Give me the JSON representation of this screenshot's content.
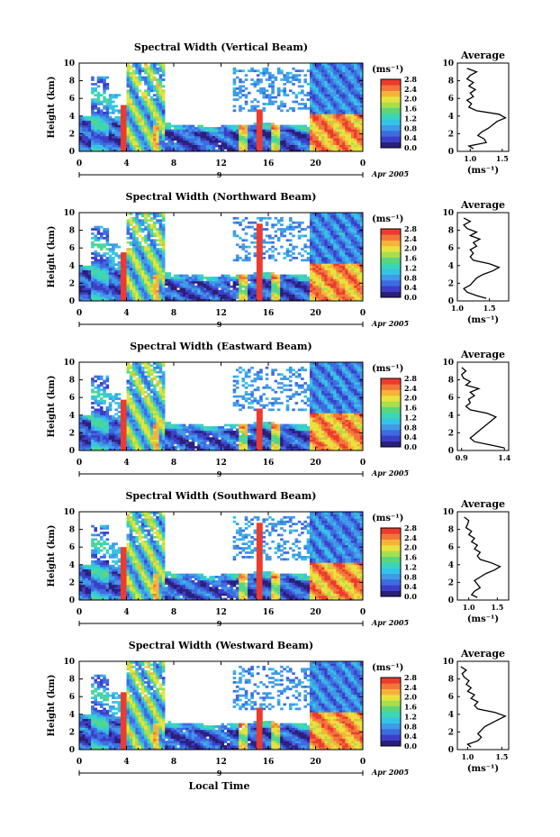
{
  "figure": {
    "xlabel": "Local Time",
    "date_label": "Apr 2005",
    "day_label": "9"
  },
  "colors": {
    "colormap": [
      "#2a1f7a",
      "#3b3fc8",
      "#3e6be0",
      "#3f9ae8",
      "#34c4e6",
      "#3ad6b8",
      "#5bd67a",
      "#a6df4e",
      "#e8e23e",
      "#f7b23a",
      "#f2763a",
      "#ec3b2e"
    ]
  },
  "chart_data": [
    {
      "type": "heatmap",
      "title": "Spectral Width (Vertical Beam)",
      "ylabel": "Height (km)",
      "x_ticks": [
        "0",
        "4",
        "8",
        "12",
        "16",
        "20",
        "0"
      ],
      "xlim": [
        0,
        24
      ],
      "ylim": [
        0,
        10
      ],
      "y_ticks": [
        "0",
        "2",
        "4",
        "6",
        "8",
        "10"
      ],
      "colorbar": {
        "unit": "(ms⁻¹)",
        "ticks": [
          "0.0",
          "0.4",
          "0.8",
          "1.2",
          "1.6",
          "2.0",
          "2.4",
          "2.8"
        ],
        "range": [
          0,
          2.8
        ]
      },
      "profile": {
        "title": "Average",
        "xlabel": "(ms⁻¹)",
        "x_ticks": [
          "1.0",
          "1.5"
        ],
        "xlim": [
          0.8,
          1.6
        ],
        "heights": [
          0.3,
          0.6,
          1.0,
          1.4,
          1.8,
          2.2,
          2.6,
          3.0,
          3.4,
          3.8,
          4.2,
          4.6,
          5.0,
          5.4,
          5.8,
          6.2,
          6.6,
          7.0,
          7.4,
          7.8,
          8.2,
          8.6,
          9.0,
          9.4
        ],
        "values": [
          1.05,
          0.98,
          1.25,
          1.22,
          1.12,
          1.18,
          1.28,
          1.35,
          1.42,
          1.55,
          1.45,
          1.1,
          0.98,
          1.02,
          0.95,
          1.05,
          1.0,
          1.08,
          0.98,
          1.05,
          0.95,
          1.0,
          1.1,
          0.95
        ]
      }
    },
    {
      "type": "heatmap",
      "title": "Spectral Width (Northward Beam)",
      "ylabel": "Height (km)",
      "x_ticks": [
        "0",
        "4",
        "8",
        "12",
        "16",
        "20",
        "0"
      ],
      "xlim": [
        0,
        24
      ],
      "ylim": [
        0,
        10
      ],
      "y_ticks": [
        "0",
        "2",
        "4",
        "6",
        "8",
        "10"
      ],
      "colorbar": {
        "unit": "(ms⁻¹)",
        "ticks": [
          "0.0",
          "0.4",
          "0.8",
          "1.2",
          "1.6",
          "2.0",
          "2.4",
          "2.8"
        ],
        "range": [
          0,
          2.8
        ]
      },
      "profile": {
        "title": "Average",
        "xlabel": "(ms⁻¹)",
        "x_ticks": [
          "1.0",
          "1.5"
        ],
        "xlim": [
          1.0,
          1.8
        ],
        "heights": [
          0.3,
          0.6,
          1.0,
          1.4,
          1.8,
          2.2,
          2.6,
          3.0,
          3.4,
          3.8,
          4.2,
          4.6,
          5.0,
          5.4,
          5.8,
          6.2,
          6.6,
          7.0,
          7.4,
          7.8,
          8.2,
          8.6,
          9.0,
          9.4
        ],
        "values": [
          1.45,
          1.3,
          1.15,
          1.1,
          1.2,
          1.25,
          1.3,
          1.4,
          1.55,
          1.65,
          1.5,
          1.25,
          1.2,
          1.25,
          1.2,
          1.3,
          1.25,
          1.35,
          1.2,
          1.3,
          1.15,
          1.1,
          1.2,
          1.1
        ]
      }
    },
    {
      "type": "heatmap",
      "title": "Spectral Width (Eastward Beam)",
      "ylabel": "Height (km)",
      "x_ticks": [
        "0",
        "4",
        "8",
        "12",
        "16",
        "20",
        "0"
      ],
      "xlim": [
        0,
        24
      ],
      "ylim": [
        0,
        10
      ],
      "y_ticks": [
        "0",
        "2",
        "4",
        "6",
        "8",
        "10"
      ],
      "colorbar": {
        "unit": "(ms⁻¹)",
        "ticks": [
          "0.0",
          "0.4",
          "0.8",
          "1.2",
          "1.6",
          "2.0",
          "2.4",
          "2.8"
        ],
        "range": [
          0,
          2.8
        ]
      },
      "profile": {
        "title": "Average",
        "xlabel": "",
        "x_ticks": [
          "0.9",
          "1.4"
        ],
        "xlim": [
          0.85,
          1.45
        ],
        "heights": [
          0.3,
          0.6,
          1.0,
          1.4,
          1.8,
          2.2,
          2.6,
          3.0,
          3.4,
          3.8,
          4.2,
          4.6,
          5.0,
          5.4,
          5.8,
          6.2,
          6.6,
          7.0,
          7.4,
          7.8,
          8.2,
          8.6,
          9.0,
          9.4
        ],
        "values": [
          1.4,
          1.25,
          1.05,
          1.0,
          1.05,
          1.1,
          1.15,
          1.2,
          1.25,
          1.3,
          1.2,
          1.0,
          0.95,
          1.0,
          0.98,
          1.05,
          1.0,
          1.1,
          0.95,
          1.0,
          0.92,
          0.9,
          0.95,
          0.9
        ]
      }
    },
    {
      "type": "heatmap",
      "title": "Spectral Width (Southward Beam)",
      "ylabel": "Height (km)",
      "x_ticks": [
        "0",
        "4",
        "8",
        "12",
        "16",
        "20",
        "0"
      ],
      "xlim": [
        0,
        24
      ],
      "ylim": [
        0,
        10
      ],
      "y_ticks": [
        "0",
        "2",
        "4",
        "6",
        "8",
        "10"
      ],
      "colorbar": {
        "unit": "(ms⁻¹)",
        "ticks": [
          "0.0",
          "0.4",
          "0.8",
          "1.2",
          "1.6",
          "2.0",
          "2.4",
          "2.8"
        ],
        "range": [
          0,
          2.8
        ]
      },
      "profile": {
        "title": "Average",
        "xlabel": "(ms⁻¹)",
        "x_ticks": [
          "1.0",
          "1.5"
        ],
        "xlim": [
          0.8,
          1.7
        ],
        "heights": [
          0.3,
          0.6,
          1.0,
          1.4,
          1.8,
          2.2,
          2.6,
          3.0,
          3.4,
          3.8,
          4.2,
          4.6,
          5.0,
          5.4,
          5.8,
          6.2,
          6.6,
          7.0,
          7.4,
          7.8,
          8.2,
          8.6,
          9.0,
          9.4
        ],
        "values": [
          1.15,
          1.05,
          1.1,
          1.2,
          1.15,
          1.1,
          1.2,
          1.3,
          1.45,
          1.55,
          1.4,
          1.2,
          1.15,
          1.2,
          1.1,
          1.15,
          1.05,
          1.1,
          1.0,
          1.05,
          0.95,
          0.98,
          1.0,
          0.92
        ]
      }
    },
    {
      "type": "heatmap",
      "title": "Spectral Width (Westward Beam)",
      "ylabel": "Height (km)",
      "x_ticks": [
        "0",
        "4",
        "8",
        "12",
        "16",
        "20",
        "0"
      ],
      "xlim": [
        0,
        24
      ],
      "ylim": [
        0,
        10
      ],
      "y_ticks": [
        "0",
        "2",
        "4",
        "6",
        "8",
        "10"
      ],
      "colorbar": {
        "unit": "(ms⁻¹)",
        "ticks": [
          "0.0",
          "0.4",
          "0.8",
          "1.2",
          "1.6",
          "2.0",
          "2.4",
          "2.8"
        ],
        "range": [
          0,
          2.8
        ]
      },
      "profile": {
        "title": "Average",
        "xlabel": "(ms⁻¹)",
        "x_ticks": [
          "1.0",
          "1.5"
        ],
        "xlim": [
          0.85,
          1.6
        ],
        "heights": [
          0.3,
          0.6,
          1.0,
          1.4,
          1.8,
          2.2,
          2.6,
          3.0,
          3.4,
          3.8,
          4.2,
          4.6,
          5.0,
          5.4,
          5.8,
          6.2,
          6.6,
          7.0,
          7.4,
          7.8,
          8.2,
          8.6,
          9.0,
          9.4
        ],
        "values": [
          1.05,
          1.0,
          1.15,
          1.2,
          1.15,
          1.2,
          1.25,
          1.35,
          1.45,
          1.55,
          1.4,
          1.15,
          1.1,
          1.15,
          1.05,
          1.1,
          1.0,
          1.05,
          0.98,
          1.02,
          0.95,
          0.92,
          0.98,
          0.9
        ]
      }
    }
  ]
}
